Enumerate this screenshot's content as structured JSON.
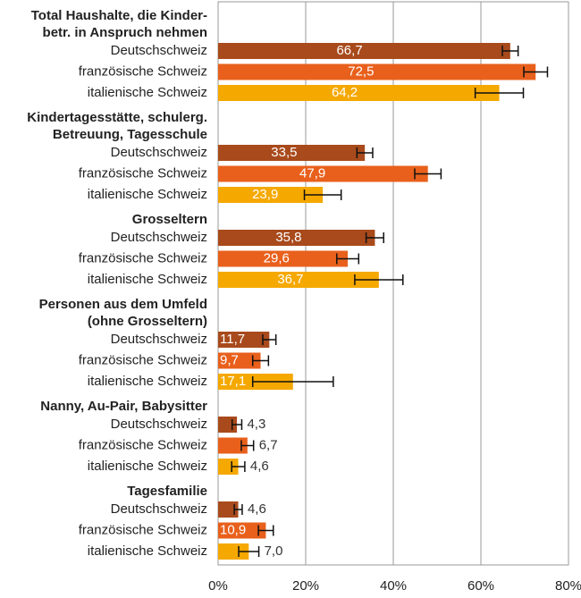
{
  "chart_data": {
    "type": "bar",
    "orientation": "horizontal",
    "categories": [
      [
        "Total Haushalte, die Kinder-",
        "betr. in Anspruch nehmen"
      ],
      [
        "Kindertagesstätte, schulerg.",
        "Betreuung, Tagesschule"
      ],
      [
        "Grosseltern"
      ],
      [
        "Personen aus dem Umfeld",
        "(ohne Grosseltern)"
      ],
      [
        "Nanny, Au-Pair, Babysitter"
      ],
      [
        "Tagesfamilie"
      ]
    ],
    "series": [
      {
        "name": "Deutschschweiz",
        "color": "#a84a1c",
        "values": [
          66.7,
          33.5,
          35.8,
          11.7,
          4.3,
          4.6
        ],
        "value_labels": [
          "66,7",
          "33,5",
          "35,8",
          "11,7",
          "4,3",
          "4,6"
        ],
        "errors": [
          1.8,
          1.8,
          2.0,
          1.5,
          1.1,
          0.9
        ]
      },
      {
        "name": "französische Schweiz",
        "color": "#e8601c",
        "values": [
          72.5,
          47.9,
          29.6,
          9.7,
          6.7,
          10.9
        ],
        "value_labels": [
          "72,5",
          "47,9",
          "29,6",
          "9,7",
          "6,7",
          "10,9"
        ],
        "errors": [
          2.7,
          3.0,
          2.5,
          1.8,
          1.4,
          1.7
        ]
      },
      {
        "name": "italienische Schweiz",
        "color": "#f5a800",
        "values": [
          64.2,
          23.9,
          36.7,
          17.1,
          4.6,
          7.0
        ],
        "value_labels": [
          "64,2",
          "23,9",
          "36,7",
          "17,1",
          "4,6",
          "7,0"
        ],
        "errors": [
          5.5,
          4.2,
          5.5,
          9.2,
          1.5,
          2.3
        ]
      }
    ],
    "xlim": [
      0,
      80
    ],
    "xticks": [
      {
        "value": 0,
        "label": "0%"
      },
      {
        "value": 20,
        "label": "20%"
      },
      {
        "value": 40,
        "label": "40%"
      },
      {
        "value": 60,
        "label": "60%"
      },
      {
        "value": 80,
        "label": "80%"
      }
    ],
    "grid": true
  }
}
